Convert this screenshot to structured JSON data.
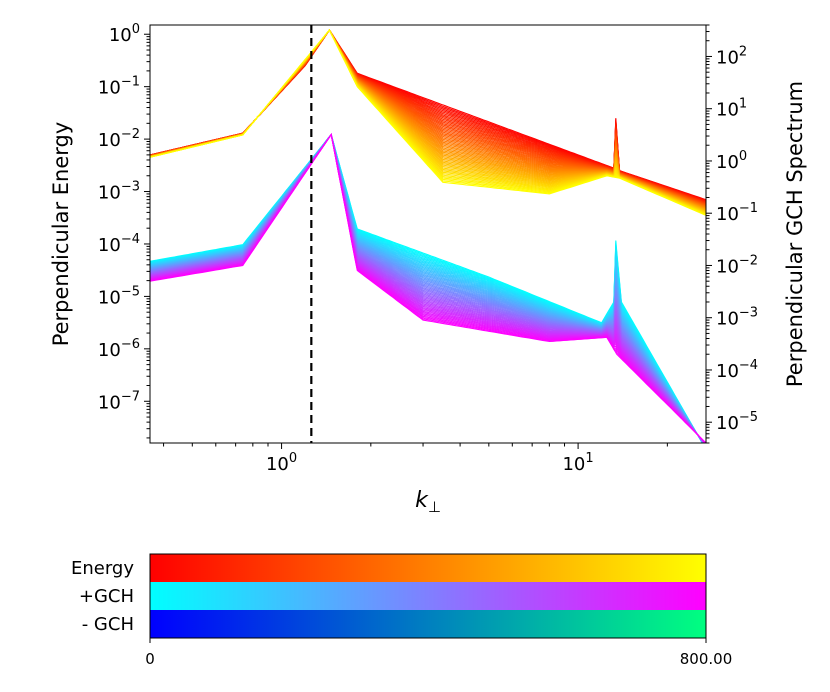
{
  "chart_data": {
    "type": "line",
    "title": "",
    "xlabel": "k",
    "xlabel_subscript": "⊥",
    "xscale": "log",
    "xlim": [
      0.36,
      27
    ],
    "x_ticks": [
      {
        "value": 1,
        "base": "10",
        "exp": "0"
      },
      {
        "value": 10,
        "base": "10",
        "exp": "1"
      }
    ],
    "left_axis": {
      "label": "Perpendicular Energy",
      "scale": "log",
      "ylim": [
        1.6e-08,
        1.5
      ],
      "ticks": [
        {
          "value": 1,
          "base": "10",
          "exp": "0"
        },
        {
          "value": 0.1,
          "base": "10",
          "exp": "−1"
        },
        {
          "value": 0.01,
          "base": "10",
          "exp": "−2"
        },
        {
          "value": 0.001,
          "base": "10",
          "exp": "−3"
        },
        {
          "value": 0.0001,
          "base": "10",
          "exp": "−4"
        },
        {
          "value": 1e-05,
          "base": "10",
          "exp": "−5"
        },
        {
          "value": 1e-06,
          "base": "10",
          "exp": "−6"
        },
        {
          "value": 1e-07,
          "base": "10",
          "exp": "−7"
        }
      ]
    },
    "right_axis": {
      "label": "Perpendicular GCH Spectrum",
      "scale": "log",
      "ylim": [
        4e-06,
        400
      ],
      "ticks": [
        {
          "value": 100,
          "base": "10",
          "exp": "2"
        },
        {
          "value": 10,
          "base": "10",
          "exp": "1"
        },
        {
          "value": 1,
          "base": "10",
          "exp": "0"
        },
        {
          "value": 0.1,
          "base": "10",
          "exp": "−1"
        },
        {
          "value": 0.01,
          "base": "10",
          "exp": "−2"
        },
        {
          "value": 0.001,
          "base": "10",
          "exp": "−3"
        },
        {
          "value": 0.0001,
          "base": "10",
          "exp": "−4"
        },
        {
          "value": 1e-05,
          "base": "10",
          "exp": "−5"
        }
      ]
    },
    "vline": {
      "x": 1.26,
      "style": "dashed",
      "color": "#000000"
    },
    "families": [
      {
        "name": "Energy",
        "axis": "left",
        "curves": 55,
        "color_start": "#ff0000",
        "color_end": "#ffff00",
        "forcing_k": 1.45,
        "initial_spectrum": {
          "k": [
            0.36,
            0.74,
            1.2,
            1.45,
            1.8,
            13.2,
            13.4,
            13.8,
            27
          ],
          "y": [
            0.005,
            0.013,
            0.25,
            1.2,
            0.18,
            0.0028,
            0.025,
            0.0025,
            0.0007
          ]
        },
        "final_spectrum": {
          "k": [
            0.36,
            0.74,
            1.45,
            1.8,
            3.5,
            8,
            12.5,
            13.8,
            27
          ],
          "y": [
            0.0045,
            0.012,
            1.2,
            0.1,
            0.0015,
            0.0009,
            0.002,
            0.0018,
            0.00035
          ]
        }
      },
      {
        "name": "+GCH",
        "axis": "right",
        "curves": 55,
        "color_start": "#00ffff",
        "color_end": "#ff00ff",
        "forcing_k": 1.47,
        "initial_spectrum": {
          "k": [
            0.36,
            0.74,
            1.47,
            1.8,
            5,
            12,
            13.2,
            13.4,
            14,
            27
          ],
          "y": [
            0.012,
            0.025,
            3.2,
            0.05,
            0.006,
            0.0008,
            0.002,
            0.03,
            0.002,
            3e-06
          ]
        },
        "final_spectrum": {
          "k": [
            0.36,
            0.74,
            1.47,
            1.8,
            3,
            8,
            12.5,
            13.5,
            27
          ],
          "y": [
            0.005,
            0.01,
            3.2,
            0.008,
            0.0009,
            0.00035,
            0.00042,
            0.0002,
            4e-06
          ]
        }
      }
    ],
    "legend": {
      "placement": "bottom",
      "type": "colorbar",
      "rows": [
        {
          "label": "Energy",
          "color_start": "#ff0000",
          "color_end": "#ffff00"
        },
        {
          "label": "+GCH",
          "color_start": "#00ffff",
          "color_end": "#ff00ff"
        },
        {
          "label": "- GCH",
          "color_start": "#0000ff",
          "color_end": "#00ff80"
        }
      ],
      "range_min": "0",
      "range_max": "800.00"
    }
  }
}
